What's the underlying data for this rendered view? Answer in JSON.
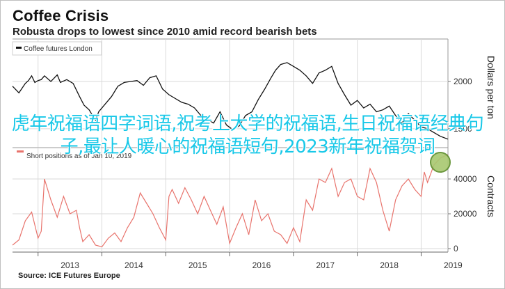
{
  "colors": {
    "futures": "#111111",
    "shorts": "#e8736c",
    "overlay": "#18c8e8",
    "grid": "#d9d9d9",
    "circle_fill": "#a8c870",
    "circle_stroke": "#5c8c2a"
  },
  "header": {
    "title": "Coffee Crisis",
    "subtitle": "Robusta drops to lowest since 2010 amid record bearish bets"
  },
  "overlay": {
    "text": "虎年祝福语四字词语,祝考上大学的祝福语,生日祝福语经典句子,最让人暖心的祝福语短句,2023新年祝福贺词"
  },
  "footer": {
    "source": "Source: ICE Futures Europe"
  },
  "chart_data": [
    {
      "type": "line",
      "legend": "Coffee futures London",
      "ylabel": "Dollars per ton",
      "ylim": [
        1300,
        2450
      ],
      "yticks": [
        "1500",
        "2000"
      ],
      "ytick_values": [
        1500,
        2000
      ],
      "grid": true,
      "legend_position": "top-left",
      "x_range": [
        2012.6,
        2019.42
      ],
      "series": [
        {
          "x": [
            2012.6,
            2012.7,
            2012.8,
            2012.85,
            2012.9,
            2012.95,
            2013.0,
            2013.05,
            2013.1,
            2013.2,
            2013.3,
            2013.35,
            2013.45,
            2013.55,
            2013.65,
            2013.72,
            2013.8,
            2013.9,
            2013.95,
            2014.05,
            2014.15,
            2014.25,
            2014.35,
            2014.45,
            2014.55,
            2014.65,
            2014.75,
            2014.85,
            2014.95,
            2015.05,
            2015.15,
            2015.25,
            2015.35,
            2015.45,
            2015.55,
            2015.65,
            2015.75,
            2015.85,
            2015.95,
            2016.05,
            2016.15,
            2016.25,
            2016.35,
            2016.45,
            2016.55,
            2016.65,
            2016.72,
            2016.8,
            2016.9,
            2017.0,
            2017.1,
            2017.2,
            2017.3,
            2017.4,
            2017.5,
            2017.6,
            2017.7,
            2017.8,
            2017.9,
            2018.0,
            2018.1,
            2018.2,
            2018.3,
            2018.4,
            2018.5,
            2018.6,
            2018.7,
            2018.8,
            2018.9,
            2019.0,
            2019.1,
            2019.2,
            2019.3,
            2019.42
          ],
          "y": [
            1950,
            1880,
            1980,
            2010,
            2060,
            1990,
            2010,
            2020,
            2060,
            2000,
            2070,
            1990,
            2020,
            1980,
            1840,
            1750,
            1700,
            1590,
            1680,
            1760,
            1840,
            1950,
            1990,
            2000,
            2010,
            1960,
            2040,
            2060,
            1920,
            1860,
            1820,
            1780,
            1760,
            1720,
            1640,
            1600,
            1560,
            1680,
            1540,
            1490,
            1530,
            1640,
            1680,
            1810,
            1920,
            2040,
            2120,
            2180,
            2200,
            2160,
            2120,
            2060,
            1980,
            2090,
            2120,
            2160,
            1980,
            1860,
            1750,
            1800,
            1720,
            1760,
            1680,
            1700,
            1740,
            1640,
            1560,
            1660,
            1590,
            1520,
            1500,
            1460,
            1420,
            1390
          ]
        }
      ]
    },
    {
      "type": "area",
      "legend": "Short positions as of Jan 10, 2019",
      "ylabel": "Contracts",
      "ylim": [
        -2000,
        58000
      ],
      "yticks": [
        "0",
        "20000",
        "40000"
      ],
      "ytick_values": [
        0,
        20000,
        40000
      ],
      "grid": true,
      "legend_position": "top-left",
      "x_range": [
        2012.6,
        2019.42
      ],
      "xticks": [
        "2013",
        "2014",
        "2015",
        "2016",
        "2017",
        "2018",
        "2019"
      ],
      "series": [
        {
          "x": [
            2012.6,
            2012.7,
            2012.8,
            2012.9,
            2013.0,
            2013.05,
            2013.1,
            2013.2,
            2013.3,
            2013.4,
            2013.5,
            2013.6,
            2013.65,
            2013.7,
            2013.8,
            2013.9,
            2014.0,
            2014.1,
            2014.2,
            2014.3,
            2014.4,
            2014.5,
            2014.6,
            2014.7,
            2014.8,
            2014.9,
            2015.0,
            2015.05,
            2015.1,
            2015.2,
            2015.3,
            2015.4,
            2015.5,
            2015.6,
            2015.7,
            2015.8,
            2015.9,
            2016.0,
            2016.1,
            2016.2,
            2016.3,
            2016.4,
            2016.5,
            2016.6,
            2016.7,
            2016.8,
            2016.9,
            2017.0,
            2017.1,
            2017.2,
            2017.3,
            2017.4,
            2017.5,
            2017.6,
            2017.7,
            2017.8,
            2017.9,
            2018.0,
            2018.1,
            2018.2,
            2018.3,
            2018.4,
            2018.5,
            2018.6,
            2018.7,
            2018.8,
            2018.9,
            2019.0,
            2019.05,
            2019.1,
            2019.2,
            2019.3,
            2019.42
          ],
          "y": [
            2000,
            5000,
            16000,
            21000,
            6000,
            10000,
            40000,
            28000,
            18000,
            30000,
            20000,
            22000,
            12000,
            4000,
            8000,
            2000,
            1000,
            6000,
            9000,
            4000,
            12000,
            18000,
            32000,
            26000,
            20000,
            12000,
            5000,
            30000,
            34000,
            26000,
            35000,
            28000,
            20000,
            30000,
            22000,
            14000,
            24000,
            3000,
            12000,
            20000,
            8000,
            28000,
            16000,
            20000,
            10000,
            8000,
            3000,
            12000,
            4000,
            28000,
            22000,
            40000,
            38000,
            46000,
            30000,
            38000,
            40000,
            30000,
            28000,
            46000,
            38000,
            22000,
            10000,
            28000,
            36000,
            40000,
            34000,
            30000,
            44000,
            38000,
            48000,
            52000,
            54000
          ]
        }
      ]
    }
  ]
}
